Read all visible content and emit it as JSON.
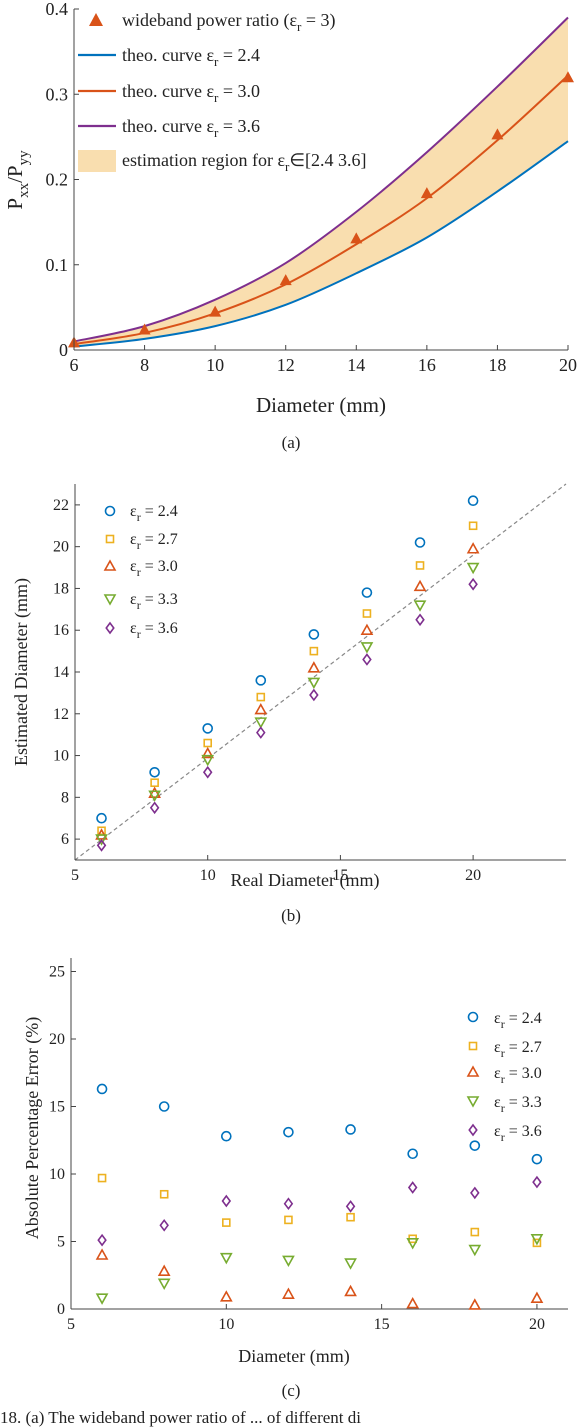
{
  "captions": [
    "(a)",
    "(b)",
    "(c)"
  ],
  "footer_text": "18. (a) The wideband power ratio of ... of different di",
  "colors": {
    "blue": "#0072BD",
    "orange": "#D95319",
    "yellow": "#EDB120",
    "green": "#77AC30",
    "purple": "#7E2F8E",
    "fill": "#F9DEAF",
    "triangle": "#D95319"
  },
  "chart_data": [
    {
      "type": "line",
      "panel": "a",
      "xlabel": "Diameter (mm)",
      "ylabel": "P_xx/P_yy",
      "xlim": [
        6,
        20
      ],
      "ylim": [
        0,
        0.4
      ],
      "xticks": [
        "6",
        "8",
        "10",
        "12",
        "14",
        "16",
        "18",
        "20"
      ],
      "yticks": [
        "0",
        "0.1",
        "0.2",
        "0.3",
        "0.4"
      ],
      "x": [
        6,
        8,
        10,
        12,
        14,
        16,
        18,
        20
      ],
      "legend_position": "top-left",
      "series": [
        {
          "name": "wideband power ratio (εr = 3)",
          "marker": "triangle",
          "values": [
            0.009,
            0.024,
            0.045,
            0.082,
            0.131,
            0.184,
            0.253,
            0.32
          ]
        },
        {
          "name": "theo. curve εr = 2.4",
          "values": [
            0.004,
            0.013,
            0.028,
            0.053,
            0.09,
            0.132,
            0.186,
            0.245
          ]
        },
        {
          "name": "theo. curve εr = 3.0",
          "values": [
            0.007,
            0.02,
            0.043,
            0.077,
            0.124,
            0.178,
            0.246,
            0.322
          ]
        },
        {
          "name": "theo. curve εr = 3.6",
          "values": [
            0.01,
            0.028,
            0.059,
            0.102,
            0.162,
            0.232,
            0.309,
            0.39
          ]
        }
      ],
      "band": {
        "name": "estimation region for εr∈[2.4 3.6]",
        "lower": "theo. curve εr = 2.4",
        "upper": "theo. curve εr = 3.6"
      },
      "legend": [
        {
          "label": "wideband power ratio (ε",
          "sub": "r",
          "tail": " = 3)",
          "kind": "triangle"
        },
        {
          "label": "theo. curve ε",
          "sub": "r",
          "tail": " = 2.4",
          "kind": "line-blue"
        },
        {
          "label": "theo. curve ε",
          "sub": "r",
          "tail": " = 3.0",
          "kind": "line-orange"
        },
        {
          "label": "theo. curve ε",
          "sub": "r",
          "tail": " = 3.6",
          "kind": "line-purple"
        },
        {
          "label": "estimation region for ε",
          "sub": "r",
          "tail": "∈[2.4 3.6]",
          "kind": "patch"
        }
      ]
    },
    {
      "type": "scatter",
      "panel": "b",
      "xlabel": "Real Diameter (mm)",
      "ylabel": "Estimated Diameter (mm)",
      "xlim": [
        5,
        23.5
      ],
      "ylim": [
        5,
        23
      ],
      "xticks": [
        "5",
        "10",
        "15",
        "20"
      ],
      "yticks": [
        "6",
        "8",
        "10",
        "12",
        "14",
        "16",
        "18",
        "20",
        "22"
      ],
      "x": [
        6,
        8,
        10,
        12,
        14,
        16,
        18,
        20
      ],
      "reference_line": "y = x",
      "legend_position": "top-left",
      "series": [
        {
          "name": "εr = 2.4",
          "marker": "circle",
          "values": [
            7.0,
            9.2,
            11.3,
            13.6,
            15.8,
            17.8,
            20.2,
            22.2
          ]
        },
        {
          "name": "εr = 2.7",
          "marker": "square",
          "values": [
            6.4,
            8.7,
            10.6,
            12.8,
            15.0,
            16.8,
            19.1,
            21.0
          ]
        },
        {
          "name": "εr = 3.0",
          "marker": "triangle",
          "values": [
            6.2,
            8.2,
            10.1,
            12.2,
            14.2,
            16.0,
            18.1,
            19.9
          ]
        },
        {
          "name": "εr = 3.3",
          "marker": "triangle-down",
          "values": [
            6.0,
            8.1,
            9.8,
            11.6,
            13.5,
            15.2,
            17.2,
            19.0
          ]
        },
        {
          "name": "εr = 3.6",
          "marker": "diamond",
          "values": [
            5.7,
            7.5,
            9.2,
            11.1,
            12.9,
            14.6,
            16.5,
            18.2
          ]
        }
      ],
      "legend": [
        {
          "label": "ε",
          "sub": "r",
          "tail": " = 2.4"
        },
        {
          "label": "ε",
          "sub": "r",
          "tail": " = 2.7"
        },
        {
          "label": "ε",
          "sub": "r",
          "tail": " = 3.0"
        },
        {
          "label": "ε",
          "sub": "r",
          "tail": " = 3.3"
        },
        {
          "label": "ε",
          "sub": "r",
          "tail": " = 3.6"
        }
      ]
    },
    {
      "type": "scatter",
      "panel": "c",
      "xlabel": "Diameter (mm)",
      "ylabel": "Absolute Percentage Error (%)",
      "xlim": [
        5,
        21
      ],
      "ylim": [
        0,
        26
      ],
      "xticks": [
        "5",
        "10",
        "15",
        "20"
      ],
      "yticks": [
        "0",
        "5",
        "10",
        "15",
        "20",
        "25"
      ],
      "x": [
        6,
        8,
        10,
        12,
        14,
        16,
        18,
        20
      ],
      "legend_position": "top-right",
      "series": [
        {
          "name": "εr = 2.4",
          "marker": "circle",
          "values": [
            16.3,
            15.0,
            12.8,
            13.1,
            13.3,
            11.5,
            12.1,
            11.1
          ]
        },
        {
          "name": "εr = 2.7",
          "marker": "square",
          "values": [
            9.7,
            8.5,
            6.4,
            6.6,
            6.8,
            5.2,
            5.7,
            4.9
          ]
        },
        {
          "name": "εr = 3.0",
          "marker": "triangle",
          "values": [
            4.0,
            2.8,
            0.9,
            1.1,
            1.3,
            0.4,
            0.3,
            0.8
          ]
        },
        {
          "name": "εr = 3.3",
          "marker": "triangle-down",
          "values": [
            0.8,
            1.9,
            3.8,
            3.6,
            3.4,
            4.9,
            4.4,
            5.2
          ]
        },
        {
          "name": "εr = 3.6",
          "marker": "diamond",
          "values": [
            5.1,
            6.2,
            8.0,
            7.8,
            7.6,
            9.0,
            8.6,
            9.4
          ]
        }
      ],
      "legend": [
        {
          "label": "ε",
          "sub": "r",
          "tail": " = 2.4"
        },
        {
          "label": "ε",
          "sub": "r",
          "tail": " = 2.7"
        },
        {
          "label": "ε",
          "sub": "r",
          "tail": " = 3.0"
        },
        {
          "label": "ε",
          "sub": "r",
          "tail": " = 3.3"
        },
        {
          "label": "ε",
          "sub": "r",
          "tail": " = 3.6"
        }
      ]
    }
  ]
}
